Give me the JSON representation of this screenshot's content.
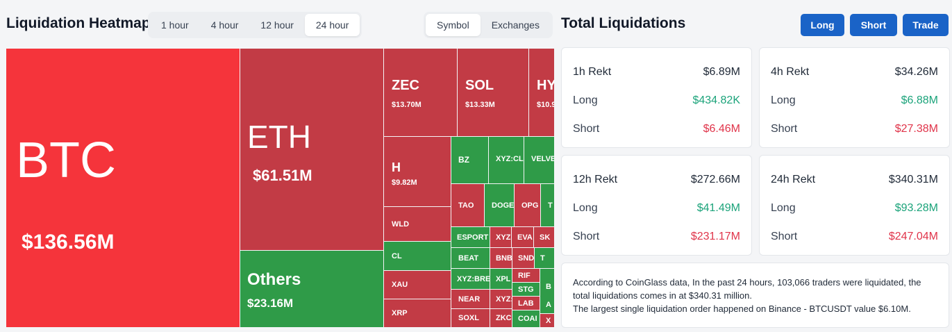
{
  "heatmap": {
    "title": "Liquidation Heatmap",
    "time_options": [
      "1 hour",
      "4 hour",
      "12 hour",
      "24 hour"
    ],
    "time_selected": "24 hour",
    "view_options": [
      "Symbol",
      "Exchanges"
    ],
    "view_selected": "Symbol",
    "tiles": [
      {
        "symbol": "BTC",
        "amount": "$136.56M"
      },
      {
        "symbol": "ETH",
        "amount": "$61.51M"
      },
      {
        "symbol": "Others",
        "amount": "$23.16M"
      },
      {
        "symbol": "ZEC",
        "amount": "$13.70M"
      },
      {
        "symbol": "SOL",
        "amount": "$13.33M"
      },
      {
        "symbol": "HY",
        "amount": "$10.9"
      },
      {
        "symbol": "H",
        "amount": "$9.82M"
      },
      {
        "symbol": "BZ"
      },
      {
        "symbol": "XYZ:CL"
      },
      {
        "symbol": "VELVE"
      },
      {
        "symbol": "TAO"
      },
      {
        "symbol": "DOGE"
      },
      {
        "symbol": "OPG"
      },
      {
        "symbol": "T"
      },
      {
        "symbol": "WLD"
      },
      {
        "symbol": "ESPORT"
      },
      {
        "symbol": "XYZ"
      },
      {
        "symbol": "EVA"
      },
      {
        "symbol": "SK"
      },
      {
        "symbol": "CL"
      },
      {
        "symbol": "BEAT"
      },
      {
        "symbol": "BNB"
      },
      {
        "symbol": "SNDK"
      },
      {
        "symbol": "T"
      },
      {
        "symbol": "XAU"
      },
      {
        "symbol": "XYZ:BRE"
      },
      {
        "symbol": "XPL"
      },
      {
        "symbol": "RIF"
      },
      {
        "symbol": "B"
      },
      {
        "symbol": "NEAR"
      },
      {
        "symbol": "XYZ:"
      },
      {
        "symbol": "STG"
      },
      {
        "symbol": "XRP"
      },
      {
        "symbol": "LAB"
      },
      {
        "symbol": "A"
      },
      {
        "symbol": "SOXL"
      },
      {
        "symbol": "ZKC"
      },
      {
        "symbol": "COAI"
      },
      {
        "symbol": "X"
      }
    ]
  },
  "liquidations": {
    "title": "Total Liquidations",
    "buttons": [
      "Long",
      "Short",
      "Trade"
    ],
    "long_label": "Long",
    "short_label": "Short",
    "cards": [
      {
        "title": "1h Rekt",
        "total": "$6.89M",
        "long": "$434.82K",
        "short": "$6.46M"
      },
      {
        "title": "4h Rekt",
        "total": "$34.26M",
        "long": "$6.88M",
        "short": "$27.38M"
      },
      {
        "title": "12h Rekt",
        "total": "$272.66M",
        "long": "$41.49M",
        "short": "$231.17M"
      },
      {
        "title": "24h Rekt",
        "total": "$340.31M",
        "long": "$93.28M",
        "short": "$247.04M"
      }
    ],
    "info_line1": "According to CoinGlass data, In the past 24 hours, 103,066 traders were liquidated, the total liquidations comes in at $340.31 million.",
    "info_line2": "The largest single liquidation order happened on Binance - BTCUSDT value $6.10M."
  },
  "colors": {
    "short_red": "#c23b45",
    "btc_red": "#f5343b",
    "long_green": "#2f9b48",
    "button_blue": "#1a63c7",
    "positive_text": "#1ba37a",
    "negative_text": "#e0344a"
  }
}
